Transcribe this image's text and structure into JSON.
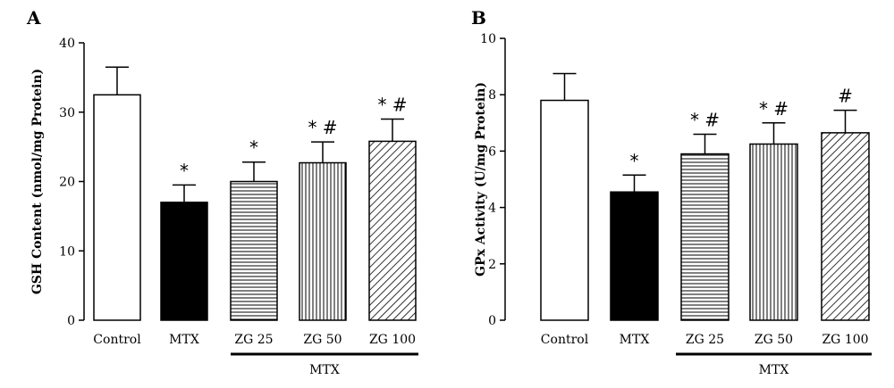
{
  "chart_data": [
    {
      "type": "bar",
      "panel_label": "A",
      "ylabel": "GSH Content (nmol/mg Protein)",
      "ylim": [
        0,
        40
      ],
      "yticks": [
        "0",
        "10",
        "20",
        "30",
        "40"
      ],
      "categories": [
        "Control",
        "MTX",
        "ZG 25",
        "ZG 50",
        "ZG 100"
      ],
      "values": [
        32.5,
        17,
        20,
        22.7,
        25.8
      ],
      "errors": [
        4,
        2.5,
        2.8,
        3,
        3.2
      ],
      "fills": [
        "white",
        "black",
        "hlines",
        "vlines",
        "diag"
      ],
      "annotations": [
        "",
        "*",
        "*",
        "* #",
        "* #"
      ],
      "group_bracket": {
        "label": "MTX",
        "categories": [
          "ZG 25",
          "ZG 50",
          "ZG 100"
        ]
      }
    },
    {
      "type": "bar",
      "panel_label": "B",
      "ylabel": "GPx Activity (U/mg Protein)",
      "ylim": [
        0,
        10
      ],
      "yticks": [
        "0",
        "2",
        "4",
        "6",
        "8",
        "10"
      ],
      "categories": [
        "Control",
        "MTX",
        "ZG 25",
        "ZG 50",
        "ZG 100"
      ],
      "values": [
        7.8,
        4.55,
        5.9,
        6.25,
        6.65
      ],
      "errors": [
        0.95,
        0.6,
        0.7,
        0.75,
        0.8
      ],
      "fills": [
        "white",
        "black",
        "hlines",
        "vlines",
        "diag"
      ],
      "annotations": [
        "",
        "*",
        "* #",
        "* #",
        "#"
      ],
      "group_bracket": {
        "label": "MTX",
        "categories": [
          "ZG 25",
          "ZG 50",
          "ZG 100"
        ]
      }
    }
  ]
}
